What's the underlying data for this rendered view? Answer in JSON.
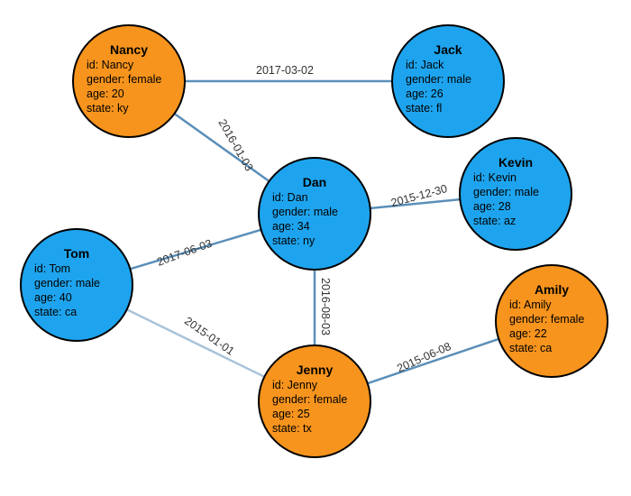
{
  "colors": {
    "female": "#f7941d",
    "male": "#1ea4ee"
  },
  "nodes": [
    {
      "key": "nancy",
      "name": "Nancy",
      "id": "id: Nancy",
      "gender": "gender: female",
      "age": "age: 20",
      "state": "state: ky",
      "type": "female"
    },
    {
      "key": "jack",
      "name": "Jack",
      "id": "id: Jack",
      "gender": "gender: male",
      "age": "age: 26",
      "state": "state: fl",
      "type": "male"
    },
    {
      "key": "dan",
      "name": "Dan",
      "id": "id: Dan",
      "gender": "gender: male",
      "age": "age: 34",
      "state": "state: ny",
      "type": "male"
    },
    {
      "key": "kevin",
      "name": "Kevin",
      "id": "id: Kevin",
      "gender": "gender: male",
      "age": "age: 28",
      "state": "state: az",
      "type": "male"
    },
    {
      "key": "tom",
      "name": "Tom",
      "id": "id: Tom",
      "gender": "gender: male",
      "age": "age: 40",
      "state": "state: ca",
      "type": "male"
    },
    {
      "key": "jenny",
      "name": "Jenny",
      "id": "id: Jenny",
      "gender": "gender: female",
      "age": "age: 25",
      "state": "state: tx",
      "type": "female"
    },
    {
      "key": "amily",
      "name": "Amily",
      "id": "id: Amily",
      "gender": "gender: female",
      "age": "age: 22",
      "state": "state: ca",
      "type": "female"
    }
  ],
  "edges": [
    {
      "from": "nancy",
      "to": "jack",
      "label": "2017-03-02"
    },
    {
      "from": "nancy",
      "to": "dan",
      "label": "2016-01-03"
    },
    {
      "from": "dan",
      "to": "kevin",
      "label": "2015-12-30"
    },
    {
      "from": "tom",
      "to": "dan",
      "label": "2017-06-03"
    },
    {
      "from": "dan",
      "to": "jenny",
      "label": "2016-08-03"
    },
    {
      "from": "tom",
      "to": "jenny",
      "label": "2015-01-01"
    },
    {
      "from": "jenny",
      "to": "amily",
      "label": "2015-06-08"
    }
  ]
}
